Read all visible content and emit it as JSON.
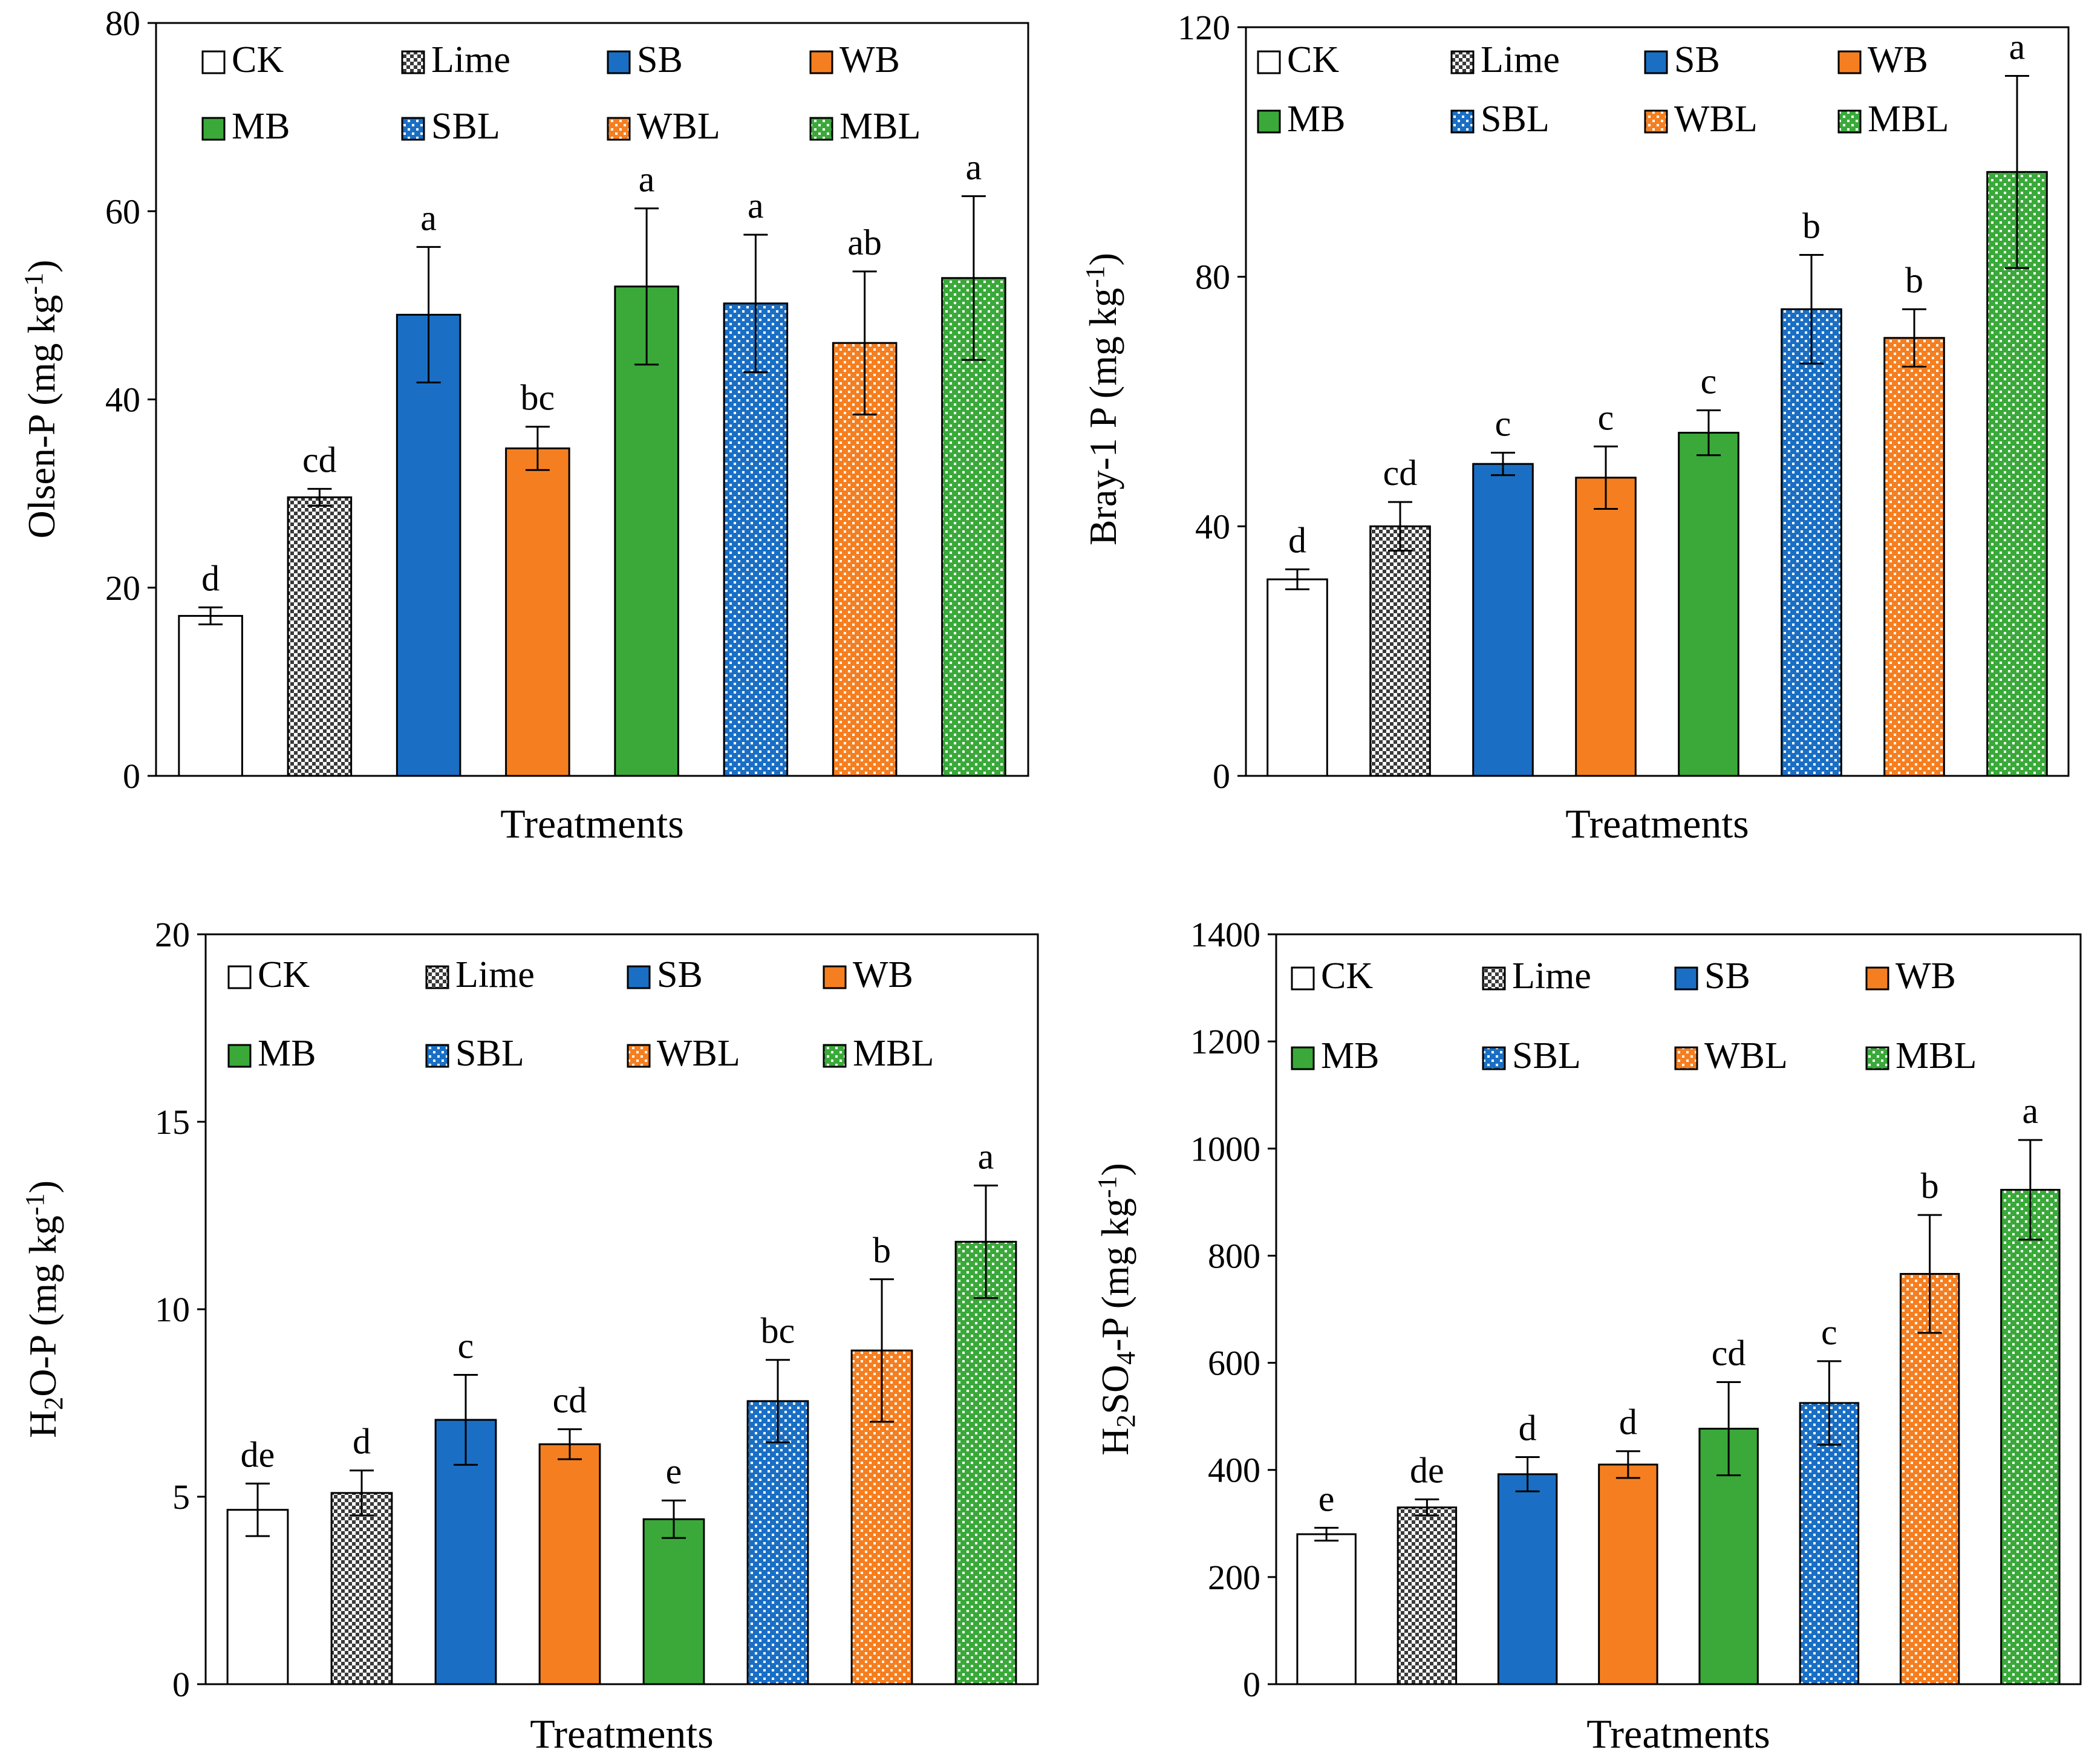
{
  "colors": {
    "ck": "#ffffff",
    "lime": "#3a3a3a",
    "sb": "#1a6fc4",
    "wb": "#f57f20",
    "mb": "#3aa93a",
    "sbl": "#1a6fc4",
    "wbl": "#f57f20",
    "mbl": "#3aa93a"
  },
  "legend": [
    "CK",
    "Lime",
    "SB",
    "WB",
    "MB",
    "SBL",
    "WBL",
    "MBL"
  ],
  "chart_data": [
    {
      "id": "olsen",
      "type": "bar",
      "title": "",
      "xlabel": "Treatments",
      "ylabel": {
        "main": "Olsen-P (mg kg",
        "sup": "-1",
        "end": ")"
      },
      "ylim": [
        0,
        80
      ],
      "yticks": [
        "0",
        "20",
        "40",
        "60",
        "80"
      ],
      "categories": [
        "CK",
        "Lime",
        "SB",
        "WB",
        "MB",
        "SBL",
        "WBL",
        "MBL"
      ],
      "values": [
        17,
        29.6,
        49,
        34.8,
        52,
        50.2,
        46,
        52.9
      ],
      "errors": [
        0.9,
        0.9,
        7.2,
        2.3,
        8.3,
        7.3,
        7.6,
        8.7
      ],
      "letters": [
        "d",
        "cd",
        "a",
        "bc",
        "a",
        "a",
        "ab",
        "a"
      ]
    },
    {
      "id": "bray",
      "type": "bar",
      "title": "",
      "xlabel": "Treatments",
      "ylabel": {
        "main": "Bray-1 P (mg kg",
        "sup": "-1",
        "end": ")"
      },
      "ylim": [
        0,
        120
      ],
      "yticks": [
        "0",
        "40",
        "80",
        "120"
      ],
      "categories": [
        "CK",
        "Lime",
        "SB",
        "WB",
        "MB",
        "SBL",
        "WBL",
        "MBL"
      ],
      "values": [
        31.5,
        40,
        50,
        47.8,
        55,
        74.8,
        70.2,
        96.8
      ],
      "errors": [
        1.6,
        3.9,
        1.8,
        5,
        3.6,
        8.7,
        4.6,
        15.4
      ],
      "letters": [
        "d",
        "cd",
        "c",
        "c",
        "c",
        "b",
        "b",
        "a"
      ]
    },
    {
      "id": "h2o",
      "type": "bar",
      "title": "",
      "xlabel": "Treatments",
      "ylabel": {
        "pre": "H",
        "sub1": "2",
        "main": "O-P (mg kg",
        "sup": "-1",
        "end": ")"
      },
      "ylim": [
        0,
        20
      ],
      "yticks": [
        "0",
        "5",
        "10",
        "15",
        "20"
      ],
      "categories": [
        "CK",
        "Lime",
        "SB",
        "WB",
        "MB",
        "SBL",
        "WBL",
        "MBL"
      ],
      "values": [
        4.65,
        5.1,
        7.05,
        6.4,
        4.4,
        7.55,
        8.9,
        11.8
      ],
      "errors": [
        0.7,
        0.6,
        1.2,
        0.4,
        0.5,
        1.1,
        1.9,
        1.5
      ],
      "letters": [
        "de",
        "d",
        "c",
        "cd",
        "e",
        "bc",
        "b",
        "a"
      ]
    },
    {
      "id": "h2so4",
      "type": "bar",
      "title": "",
      "xlabel": "Treatments",
      "ylabel": {
        "pre": "H",
        "sub1": "2",
        "mid": "SO",
        "sub2": "4",
        "main": "-P (mg kg",
        "sup": "-1",
        "end": ")"
      },
      "ylim": [
        0,
        1400
      ],
      "yticks": [
        "0",
        "200",
        "400",
        "600",
        "800",
        "1000",
        "1200",
        "1400"
      ],
      "categories": [
        "CK",
        "Lime",
        "SB",
        "WB",
        "MB",
        "SBL",
        "WBL",
        "MBL"
      ],
      "values": [
        280,
        330,
        392,
        410,
        477,
        525,
        766,
        923
      ],
      "errors": [
        12,
        15,
        32,
        25,
        87,
        78,
        110,
        93
      ],
      "letters": [
        "e",
        "de",
        "d",
        "d",
        "cd",
        "c",
        "b",
        "a"
      ]
    }
  ]
}
